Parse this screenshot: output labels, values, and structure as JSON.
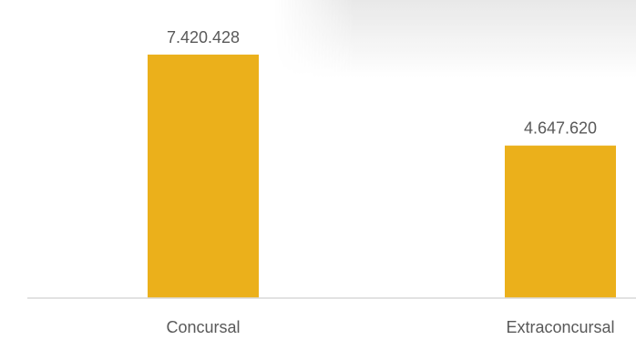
{
  "chart_data": {
    "type": "bar",
    "categories": [
      "Concursal",
      "Extraconcursal"
    ],
    "values": [
      7420428,
      4647620
    ],
    "data_labels": [
      "7.420.428",
      "4.647.620"
    ],
    "title": "",
    "xlabel": "",
    "ylabel": "",
    "ylim": [
      0,
      8000000
    ],
    "grid": false,
    "legend": "none",
    "bar_color": "#EBB01B",
    "axis_color": "#D9D9D9",
    "label_color": "#595959"
  }
}
